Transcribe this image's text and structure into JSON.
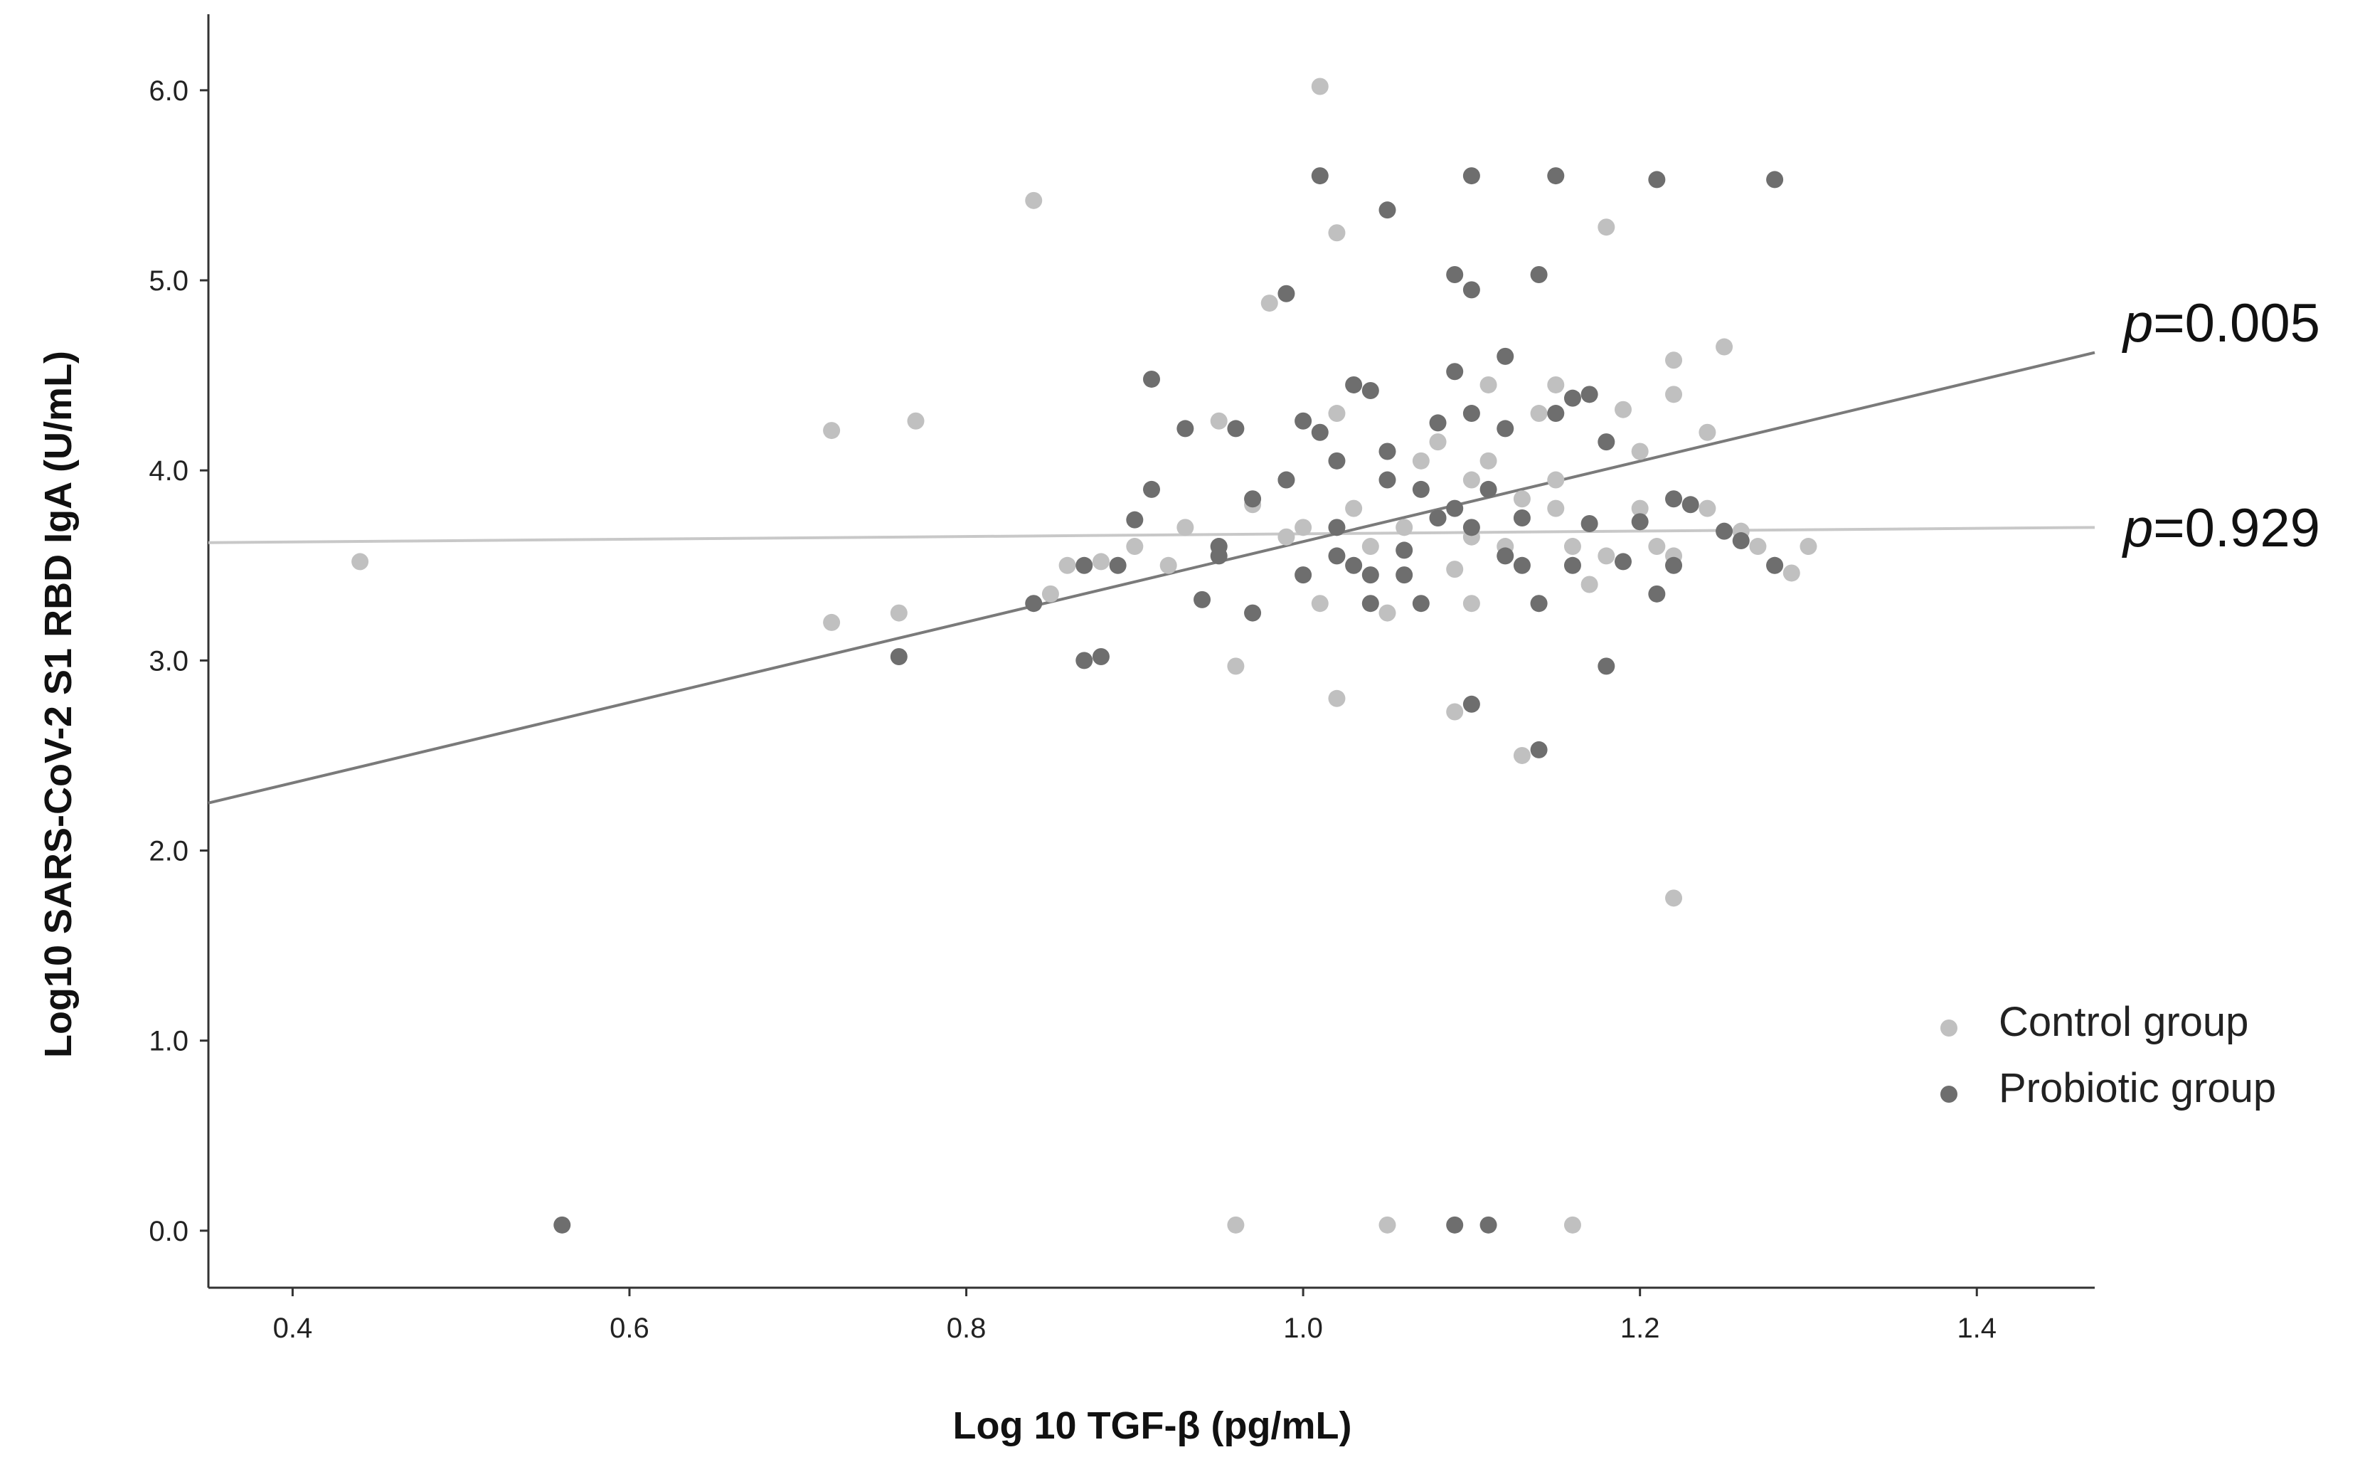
{
  "chart_data": {
    "type": "scatter",
    "title": "",
    "xlabel": "Log 10 TGF-β (pg/mL)",
    "ylabel": "Log10 SARS-CoV-2 S1 RBD IgA  (U/mL)",
    "xlim": [
      0.35,
      1.47
    ],
    "ylim": [
      -0.3,
      6.4
    ],
    "x_ticks": [
      "0.4",
      "0.6",
      "0.8",
      "1.0",
      "1.2",
      "1.4"
    ],
    "y_ticks": [
      "0.0",
      "1.0",
      "2.0",
      "3.0",
      "4.0",
      "5.0",
      "6.0"
    ],
    "grid": false,
    "legend": "right",
    "series": [
      {
        "name": "Control group",
        "color": "#c0c0c0",
        "points": [
          [
            0.44,
            3.52
          ],
          [
            0.72,
            4.21
          ],
          [
            0.72,
            3.2
          ],
          [
            0.76,
            3.25
          ],
          [
            0.77,
            4.26
          ],
          [
            0.84,
            5.42
          ],
          [
            0.85,
            3.35
          ],
          [
            0.86,
            3.5
          ],
          [
            0.88,
            3.52
          ],
          [
            0.9,
            3.6
          ],
          [
            0.92,
            3.5
          ],
          [
            0.93,
            3.7
          ],
          [
            0.95,
            4.26
          ],
          [
            0.95,
            3.6
          ],
          [
            0.96,
            2.97
          ],
          [
            0.97,
            3.82
          ],
          [
            0.98,
            4.88
          ],
          [
            0.99,
            3.95
          ],
          [
            0.99,
            3.65
          ],
          [
            1.0,
            3.7
          ],
          [
            1.01,
            6.02
          ],
          [
            1.01,
            3.3
          ],
          [
            1.02,
            5.25
          ],
          [
            1.02,
            4.3
          ],
          [
            1.02,
            2.8
          ],
          [
            1.03,
            3.8
          ],
          [
            1.04,
            3.6
          ],
          [
            1.05,
            3.25
          ],
          [
            1.06,
            3.7
          ],
          [
            1.07,
            4.05
          ],
          [
            1.08,
            4.15
          ],
          [
            1.08,
            3.75
          ],
          [
            1.09,
            2.73
          ],
          [
            1.09,
            3.48
          ],
          [
            1.1,
            3.95
          ],
          [
            1.1,
            3.65
          ],
          [
            1.11,
            4.45
          ],
          [
            1.11,
            4.05
          ],
          [
            1.12,
            3.6
          ],
          [
            1.13,
            2.5
          ],
          [
            1.13,
            3.85
          ],
          [
            1.14,
            3.3
          ],
          [
            1.14,
            4.3
          ],
          [
            1.15,
            4.45
          ],
          [
            1.15,
            3.95
          ],
          [
            1.15,
            3.8
          ],
          [
            1.16,
            3.6
          ],
          [
            1.17,
            3.4
          ],
          [
            1.18,
            5.28
          ],
          [
            1.18,
            3.55
          ],
          [
            1.19,
            4.32
          ],
          [
            1.2,
            4.1
          ],
          [
            1.2,
            3.8
          ],
          [
            1.21,
            3.6
          ],
          [
            1.22,
            3.55
          ],
          [
            1.22,
            4.4
          ],
          [
            1.22,
            4.58
          ],
          [
            1.22,
            1.75
          ],
          [
            1.24,
            4.2
          ],
          [
            1.24,
            3.8
          ],
          [
            1.25,
            4.65
          ],
          [
            1.26,
            3.68
          ],
          [
            1.27,
            3.6
          ],
          [
            1.28,
            3.5
          ],
          [
            1.29,
            3.46
          ],
          [
            1.3,
            3.6
          ],
          [
            0.96,
            0.03
          ],
          [
            1.05,
            0.03
          ],
          [
            1.16,
            0.03
          ],
          [
            1.1,
            3.3
          ]
        ]
      },
      {
        "name": "Probiotic group",
        "color": "#6e6e6e",
        "points": [
          [
            0.56,
            0.03
          ],
          [
            0.76,
            3.02
          ],
          [
            0.84,
            3.3
          ],
          [
            0.87,
            3.5
          ],
          [
            0.87,
            3.0
          ],
          [
            0.88,
            3.02
          ],
          [
            0.89,
            3.5
          ],
          [
            0.9,
            3.74
          ],
          [
            0.91,
            4.48
          ],
          [
            0.91,
            3.9
          ],
          [
            0.93,
            4.22
          ],
          [
            0.94,
            3.32
          ],
          [
            0.95,
            3.55
          ],
          [
            0.95,
            3.6
          ],
          [
            0.96,
            4.22
          ],
          [
            0.97,
            3.25
          ],
          [
            0.97,
            3.85
          ],
          [
            0.99,
            4.93
          ],
          [
            0.99,
            3.95
          ],
          [
            1.0,
            3.45
          ],
          [
            1.0,
            4.26
          ],
          [
            1.01,
            5.55
          ],
          [
            1.01,
            4.2
          ],
          [
            1.02,
            3.7
          ],
          [
            1.02,
            4.05
          ],
          [
            1.02,
            3.55
          ],
          [
            1.03,
            4.45
          ],
          [
            1.03,
            3.5
          ],
          [
            1.04,
            4.42
          ],
          [
            1.04,
            3.3
          ],
          [
            1.04,
            3.45
          ],
          [
            1.05,
            5.37
          ],
          [
            1.05,
            4.1
          ],
          [
            1.05,
            3.95
          ],
          [
            1.06,
            3.58
          ],
          [
            1.06,
            3.45
          ],
          [
            1.07,
            3.3
          ],
          [
            1.07,
            3.9
          ],
          [
            1.08,
            4.25
          ],
          [
            1.08,
            3.75
          ],
          [
            1.09,
            5.03
          ],
          [
            1.09,
            4.52
          ],
          [
            1.09,
            3.8
          ],
          [
            1.1,
            5.55
          ],
          [
            1.1,
            4.95
          ],
          [
            1.1,
            4.3
          ],
          [
            1.1,
            3.7
          ],
          [
            1.1,
            2.77
          ],
          [
            1.11,
            3.9
          ],
          [
            1.12,
            4.6
          ],
          [
            1.12,
            3.55
          ],
          [
            1.12,
            4.22
          ],
          [
            1.13,
            3.5
          ],
          [
            1.13,
            3.75
          ],
          [
            1.14,
            5.03
          ],
          [
            1.14,
            2.53
          ],
          [
            1.14,
            3.3
          ],
          [
            1.15,
            5.55
          ],
          [
            1.15,
            4.3
          ],
          [
            1.16,
            4.38
          ],
          [
            1.16,
            3.5
          ],
          [
            1.17,
            3.72
          ],
          [
            1.17,
            4.4
          ],
          [
            1.18,
            2.97
          ],
          [
            1.18,
            4.15
          ],
          [
            1.19,
            3.52
          ],
          [
            1.2,
            3.73
          ],
          [
            1.21,
            5.53
          ],
          [
            1.21,
            3.35
          ],
          [
            1.22,
            3.85
          ],
          [
            1.22,
            3.5
          ],
          [
            1.23,
            3.82
          ],
          [
            1.25,
            3.68
          ],
          [
            1.26,
            3.63
          ],
          [
            1.28,
            5.53
          ],
          [
            1.28,
            3.5
          ],
          [
            1.09,
            0.03
          ],
          [
            1.11,
            0.03
          ]
        ]
      }
    ],
    "fit_lines": [
      {
        "series": "Probiotic group",
        "label_prefix": "p",
        "label_value": "=0.005",
        "color": "#7a7a7a",
        "x": [
          0.35,
          1.47
        ],
        "y": [
          2.25,
          4.62
        ]
      },
      {
        "series": "Control group",
        "label_prefix": "p",
        "label_value": "=0.929",
        "color": "#c8c8c8",
        "x": [
          0.35,
          1.47
        ],
        "y": [
          3.62,
          3.7
        ]
      }
    ]
  }
}
